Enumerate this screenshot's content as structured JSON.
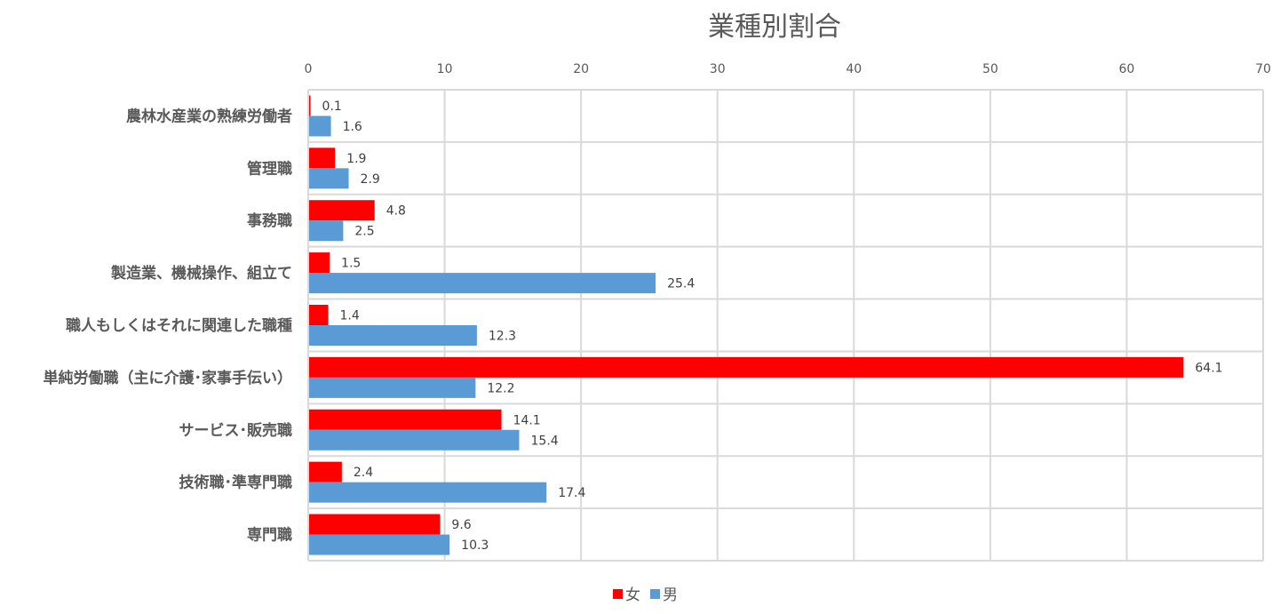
{
  "chart_data": {
    "type": "bar",
    "orientation": "horizontal",
    "title": "業種別割合",
    "xlim": [
      0,
      70
    ],
    "x_ticks": [
      0,
      10,
      20,
      30,
      40,
      50,
      60,
      70
    ],
    "x_axis_position": "top",
    "grid": true,
    "legend_position": "bottom",
    "categories": [
      "農林水産業の熟練労働者",
      "管理職",
      "事務職",
      "製造業、機械操作、組立て",
      "職人もしくはそれに関連した職種",
      "単純労働職（主に介護･家事手伝い）",
      "サービス･販売職",
      "技術職･準専門職",
      "専門職"
    ],
    "series": [
      {
        "name": "女",
        "color": "#ff0000",
        "values": [
          0.1,
          1.9,
          4.8,
          1.5,
          1.4,
          64.1,
          14.1,
          2.4,
          9.6
        ]
      },
      {
        "name": "男",
        "color": "#5b9bd5",
        "values": [
          1.6,
          2.9,
          2.5,
          25.4,
          12.3,
          12.2,
          15.4,
          17.4,
          10.3
        ]
      }
    ]
  }
}
